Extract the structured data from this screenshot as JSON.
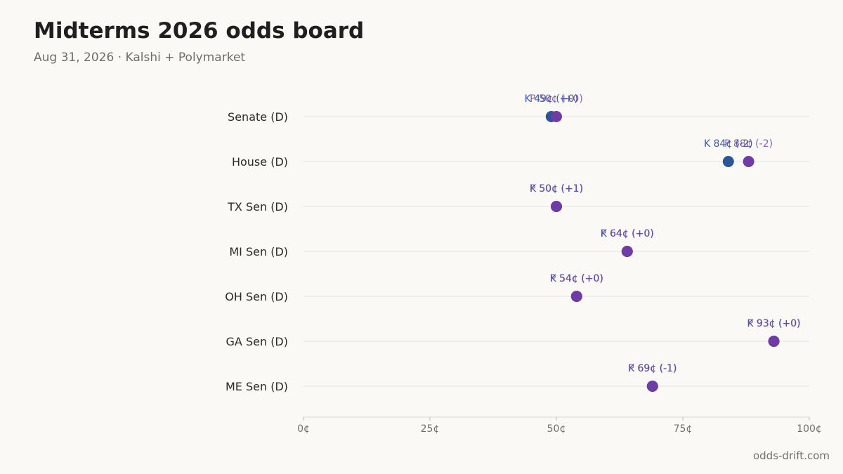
{
  "header": {
    "title": "Midterms 2026 odds board",
    "subtitle": "Aug 31, 2026 · Kalshi + Polymarket"
  },
  "footer": {
    "source": "odds-drift.com"
  },
  "colors": {
    "kalshi": "#2b5797",
    "polymarket": "#6f3ca3"
  },
  "chart_data": {
    "type": "scatter",
    "categories": [
      "Senate (D)",
      "House (D)",
      "TX Sen (D)",
      "MI Sen (D)",
      "OH Sen (D)",
      "GA Sen (D)",
      "ME Sen (D)"
    ],
    "xlim": [
      0,
      100
    ],
    "xticks": [
      0,
      25,
      50,
      75,
      100
    ],
    "xtick_labels": [
      "0¢",
      "25¢",
      "50¢",
      "75¢",
      "100¢"
    ],
    "grid": true,
    "series": [
      {
        "name": "K",
        "values": [
          49,
          84,
          50,
          64,
          54,
          93,
          69
        ],
        "changes": [
          "+0",
          "-2",
          "+1",
          "+0",
          "+0",
          "+0",
          "-1"
        ],
        "labels": [
          "K 49¢ (+0)",
          "K 84¢ (-2)",
          "K 50¢ (+1)",
          "K 64¢ (+0)",
          "K 54¢ (+0)",
          "K 93¢ (+0)",
          "K 69¢ (-1)"
        ]
      },
      {
        "name": "P",
        "values": [
          50,
          88,
          50,
          64,
          54,
          93,
          69
        ],
        "changes": [
          "+0",
          "-2",
          "+1",
          "+0",
          "+0",
          "+0",
          "-1"
        ],
        "labels": [
          "P 50¢ (+0)",
          "P 88¢ (-2)",
          "P 50¢ (+1)",
          "P 64¢ (+0)",
          "P 54¢ (+0)",
          "P 93¢ (+0)",
          "P 69¢ (-1)"
        ]
      }
    ]
  }
}
